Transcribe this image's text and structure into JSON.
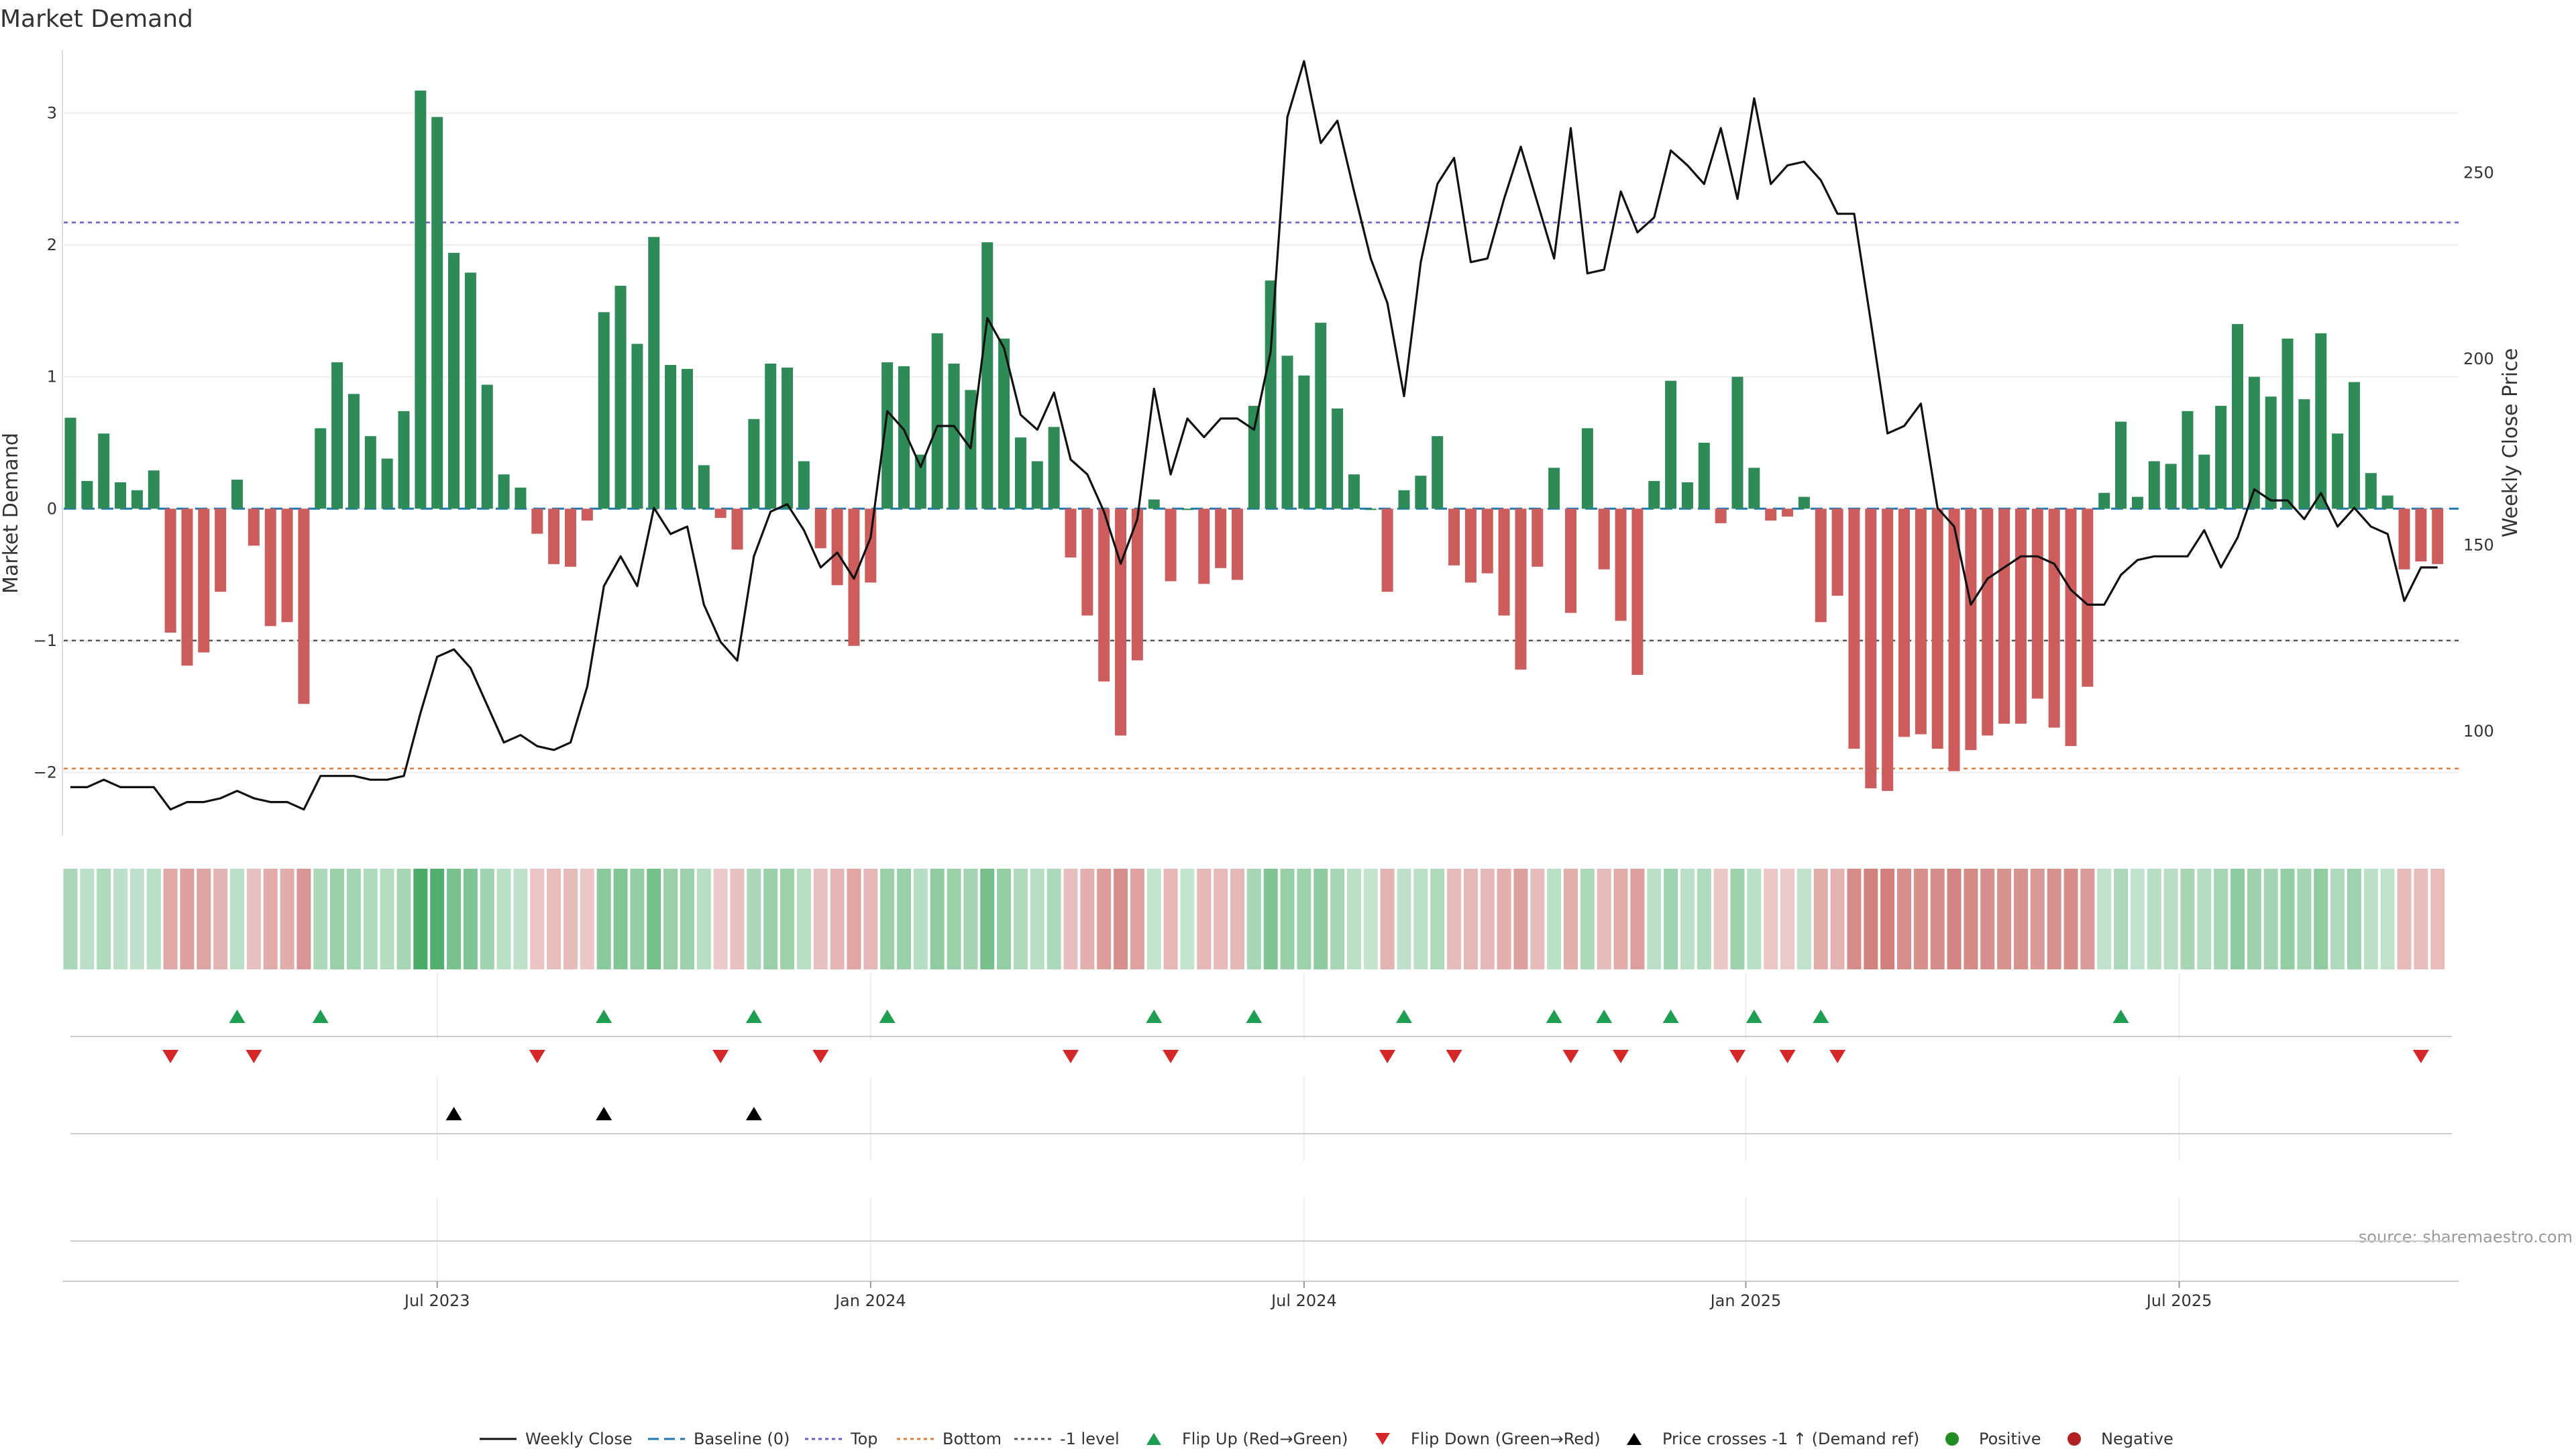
{
  "chart_data": {
    "type": "bar",
    "title": "Market Demand",
    "ylabel": "Market Demand",
    "y2label": "Weekly Close Price",
    "ylim": [
      -2.45,
      3.45
    ],
    "y2lim": [
      73,
      282
    ],
    "yticks": [
      "−2",
      "−1",
      "0",
      "1",
      "2",
      "3"
    ],
    "ytick_values": [
      -2,
      -1,
      0,
      1,
      2,
      3
    ],
    "y2ticks": [
      "100",
      "150",
      "200",
      "250"
    ],
    "y2tick_values": [
      100,
      150,
      200,
      250
    ],
    "xticks": [
      "Jul 2023",
      "Jan 2024",
      "Jul 2024",
      "Jan 2025",
      "Jul 2025"
    ],
    "xtick_weeks": [
      22,
      48,
      74,
      100.5,
      126.5
    ],
    "reference_lines": {
      "top": 2.17,
      "bottom": -1.97,
      "minus_one": -1.0,
      "baseline": 0
    },
    "demand": [
      0.69,
      0.21,
      0.57,
      0.2,
      0.14,
      0.29,
      -0.94,
      -1.19,
      -1.09,
      -0.63,
      0.22,
      -0.28,
      -0.89,
      -0.86,
      -1.48,
      0.61,
      1.11,
      0.87,
      0.55,
      0.38,
      0.74,
      3.17,
      2.97,
      1.94,
      1.79,
      0.94,
      0.26,
      0.16,
      -0.19,
      -0.42,
      -0.44,
      -0.09,
      1.49,
      1.69,
      1.25,
      2.06,
      1.09,
      1.06,
      0.33,
      -0.07,
      -0.31,
      0.68,
      1.1,
      1.07,
      0.36,
      -0.3,
      -0.58,
      -1.04,
      -0.56,
      1.11,
      1.08,
      0.41,
      1.33,
      1.1,
      0.9,
      2.02,
      1.29,
      0.54,
      0.36,
      0.62,
      -0.37,
      -0.81,
      -1.31,
      -1.72,
      -1.15,
      0.07,
      -0.55,
      0.0,
      -0.57,
      -0.45,
      -0.54,
      0.78,
      1.73,
      1.16,
      1.01,
      1.41,
      0.76,
      0.26,
      0.0,
      -0.63,
      0.14,
      0.25,
      0.55,
      -0.43,
      -0.56,
      -0.49,
      -0.81,
      -1.22,
      -0.44,
      0.31,
      -0.79,
      0.61,
      -0.46,
      -0.85,
      -1.26,
      0.21,
      0.97,
      0.2,
      0.5,
      -0.11,
      1.0,
      0.31,
      -0.09,
      -0.06,
      0.09,
      -0.86,
      -0.66,
      -1.82,
      -2.12,
      -2.14,
      -1.73,
      -1.71,
      -1.82,
      -1.99,
      -1.83,
      -1.72,
      -1.63,
      -1.63,
      -1.44,
      -1.66,
      -1.8,
      -1.35,
      0.12,
      0.66,
      0.09,
      0.36,
      0.34,
      0.74,
      0.41,
      0.78,
      1.4,
      1.0,
      0.85,
      1.29,
      0.83,
      1.33,
      0.57,
      0.96,
      0.27,
      0.1,
      -0.46,
      -0.4,
      -0.42
    ],
    "close": [
      85,
      85,
      87,
      85,
      85,
      85,
      79,
      81,
      81,
      82,
      84,
      82,
      81,
      81,
      79,
      88,
      88,
      88,
      87,
      87,
      88,
      105,
      120,
      122,
      117,
      107,
      97,
      99,
      96,
      95,
      97,
      112,
      139,
      147,
      139,
      160,
      153,
      155,
      134,
      124,
      119,
      147,
      159,
      161,
      154,
      144,
      148,
      141,
      152,
      186,
      181,
      171,
      182,
      182,
      176,
      211,
      203,
      185,
      181,
      191,
      173,
      169,
      159,
      145,
      157,
      192,
      169,
      184,
      179,
      184,
      184,
      181,
      202,
      265,
      280,
      258,
      264,
      245,
      227,
      215,
      190,
      226,
      247,
      254,
      226,
      227,
      243,
      257,
      242,
      227,
      262,
      223,
      224,
      245,
      234,
      238,
      256,
      252,
      247,
      262,
      243,
      270,
      247,
      252,
      253,
      248,
      239,
      239,
      210,
      180,
      182,
      188,
      160,
      155,
      134,
      141,
      144,
      147,
      147,
      145,
      138,
      134,
      134,
      142,
      146,
      147,
      147,
      147,
      154,
      144,
      152,
      165,
      162,
      162,
      157,
      164,
      155,
      160,
      155,
      153,
      135,
      144,
      144
    ],
    "flip_up": [
      "Flip Up (Red→Green)",
      [
        10,
        15,
        32,
        41,
        49,
        65,
        71,
        80,
        89,
        92,
        96,
        101,
        105,
        123
      ]
    ],
    "flip_down": [
      "Flip Down (Green→Red)",
      [
        6,
        11,
        28,
        39,
        45,
        60,
        66,
        79,
        83,
        90,
        93,
        100,
        103,
        106,
        141
      ]
    ],
    "price_cross": [
      "Price crosses -1 ↑ (Demand ref)",
      [
        23,
        32,
        41
      ]
    ],
    "legend": {
      "weekly_close": "Weekly Close",
      "baseline": "Baseline (0)",
      "top": "Top",
      "bottom": "Bottom",
      "minus_one": "-1 level",
      "flip_up": "Flip Up (Red→Green)",
      "flip_down": "Flip Down (Green→Red)",
      "price_cross": "Price crosses -1 ↑ (Demand ref)",
      "positive": "Positive",
      "negative": "Negative"
    },
    "source": "source: sharemaestro.com"
  },
  "colors": {
    "positive": "#2e8b57",
    "negative": "#cd5c5c",
    "line": "#111111",
    "top": "#6a5acd",
    "bottom": "#e07b39",
    "minus_one": "#555555",
    "flip_up": "#1e9e50",
    "flip_down": "#d62728",
    "cross": "#000000",
    "legend_positive": "#228b22",
    "legend_negative": "#b22222",
    "baseline": "#1f77b4"
  }
}
